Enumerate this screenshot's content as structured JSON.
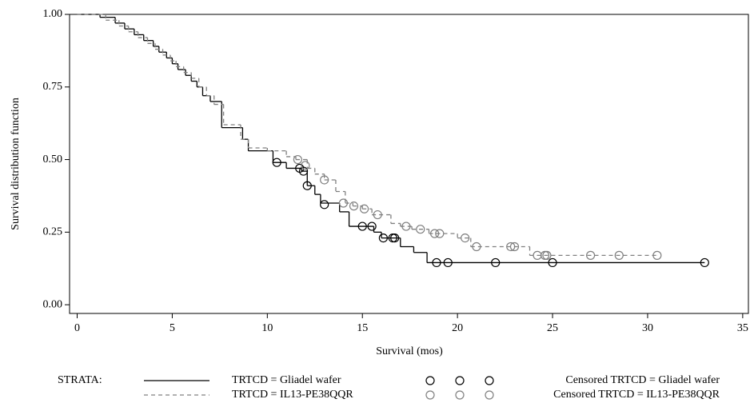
{
  "chart_data": {
    "type": "survival",
    "x_label": "Survival (mos)",
    "y_label": "Survival distribution function",
    "legend_title": "STRATA:",
    "xlim": [
      -0.4,
      35.3
    ],
    "ylim": [
      -0.03,
      1.0
    ],
    "xticks": [
      0,
      5,
      10,
      15,
      20,
      25,
      30,
      35
    ],
    "yticks": [
      {
        "value": 0,
        "label": "0.00"
      },
      {
        "value": 0.25,
        "label": "0.25"
      },
      {
        "value": 0.5,
        "label": "0.50"
      },
      {
        "value": 0.75,
        "label": "0.75"
      },
      {
        "value": 1,
        "label": "1.00"
      }
    ],
    "series": [
      {
        "name": "TRTCD = Gliadel wafer",
        "color": "#000000",
        "style": "step",
        "dash": "none",
        "x": [
          0,
          1.2,
          2,
          2.5,
          3,
          3.5,
          4,
          4.3,
          4.7,
          5,
          5.3,
          5.7,
          6,
          6.3,
          6.6,
          7,
          7.6,
          8.7,
          9,
          10.3,
          11,
          11.8,
          12.1,
          12.5,
          12.8,
          13.8,
          14.3,
          15.6,
          16,
          17,
          17.7,
          18.4,
          33
        ],
        "values": [
          1,
          0.99,
          0.97,
          0.95,
          0.93,
          0.91,
          0.89,
          0.87,
          0.85,
          0.83,
          0.81,
          0.79,
          0.77,
          0.75,
          0.72,
          0.7,
          0.61,
          0.57,
          0.53,
          0.49,
          0.47,
          0.46,
          0.41,
          0.38,
          0.35,
          0.32,
          0.27,
          0.25,
          0.23,
          0.2,
          0.18,
          0.145,
          0.145
        ]
      },
      {
        "name": "TRTCD = IL13-PE38QQR",
        "color": "#808080",
        "style": "step",
        "dash": "5,4",
        "x": [
          0,
          1.5,
          2.2,
          2.7,
          3.2,
          3.7,
          4.1,
          4.5,
          4.9,
          5.2,
          5.6,
          6,
          6.4,
          6.8,
          7.2,
          7.7,
          8.6,
          9,
          10,
          11,
          11.5,
          12.1,
          12.5,
          13,
          13.6,
          14.1,
          14.5,
          15,
          15.5,
          16.5,
          17,
          17.6,
          18.5,
          20,
          20.7,
          23.8,
          30.5
        ],
        "values": [
          1,
          0.98,
          0.96,
          0.94,
          0.92,
          0.9,
          0.88,
          0.86,
          0.84,
          0.82,
          0.8,
          0.78,
          0.75,
          0.72,
          0.69,
          0.62,
          0.57,
          0.54,
          0.53,
          0.51,
          0.5,
          0.47,
          0.45,
          0.43,
          0.39,
          0.35,
          0.34,
          0.33,
          0.31,
          0.28,
          0.27,
          0.26,
          0.245,
          0.23,
          0.2,
          0.17,
          0.17
        ]
      },
      {
        "name": "Censored TRTCD = Gliadel wafer",
        "color": "#000000",
        "style": "circle",
        "x": [
          10.5,
          11.7,
          11.9,
          12.1,
          13,
          15,
          15.5,
          16.1,
          16.6,
          16.7,
          18.9,
          19.5,
          22,
          25,
          33
        ],
        "values": [
          0.49,
          0.47,
          0.46,
          0.41,
          0.345,
          0.27,
          0.27,
          0.23,
          0.23,
          0.23,
          0.145,
          0.145,
          0.145,
          0.145,
          0.145
        ]
      },
      {
        "name": "Censored TRTCD = IL13-PE38QQR",
        "color": "#808080",
        "style": "circle",
        "x": [
          11.6,
          12.0,
          13.0,
          14.0,
          14.55,
          15.1,
          15.8,
          17.3,
          18.05,
          18.8,
          19.06,
          20.4,
          21,
          22.8,
          23.0,
          24.2,
          24.6,
          24.7,
          27,
          28.5,
          30.5
        ],
        "values": [
          0.5,
          0.48,
          0.43,
          0.35,
          0.34,
          0.33,
          0.31,
          0.27,
          0.26,
          0.245,
          0.245,
          0.23,
          0.2,
          0.2,
          0.2,
          0.17,
          0.17,
          0.17,
          0.17,
          0.17,
          0.17
        ]
      }
    ]
  }
}
